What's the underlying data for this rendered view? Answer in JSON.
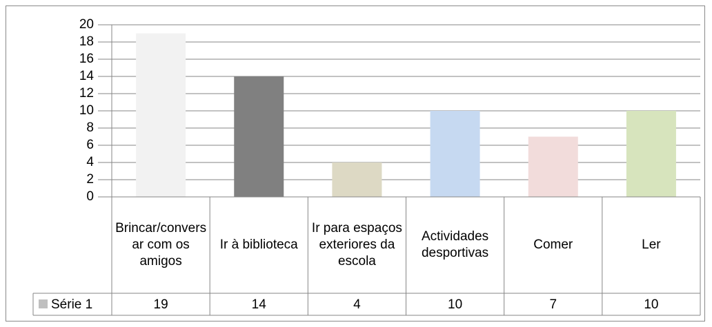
{
  "chart_data": {
    "type": "bar",
    "categories": [
      "Brincar/conversar com os amigos",
      "Ir à biblioteca",
      "Ir para espaços exteriores da escola",
      "Actividades desportivas",
      "Comer",
      "Ler"
    ],
    "series": [
      {
        "name": "Série 1",
        "color": "#bfbfbf",
        "colors": [
          "#f2f2f2",
          "#808080",
          "#ddd9c4",
          "#c6d9f1",
          "#f2dcdb",
          "#d7e4bd"
        ],
        "values": [
          19,
          14,
          4,
          10,
          7,
          10
        ]
      }
    ],
    "ylim": [
      0,
      20
    ],
    "yticks": [
      0,
      2,
      4,
      6,
      8,
      10,
      12,
      14,
      16,
      18,
      20
    ],
    "grid": true,
    "data_table": true
  }
}
